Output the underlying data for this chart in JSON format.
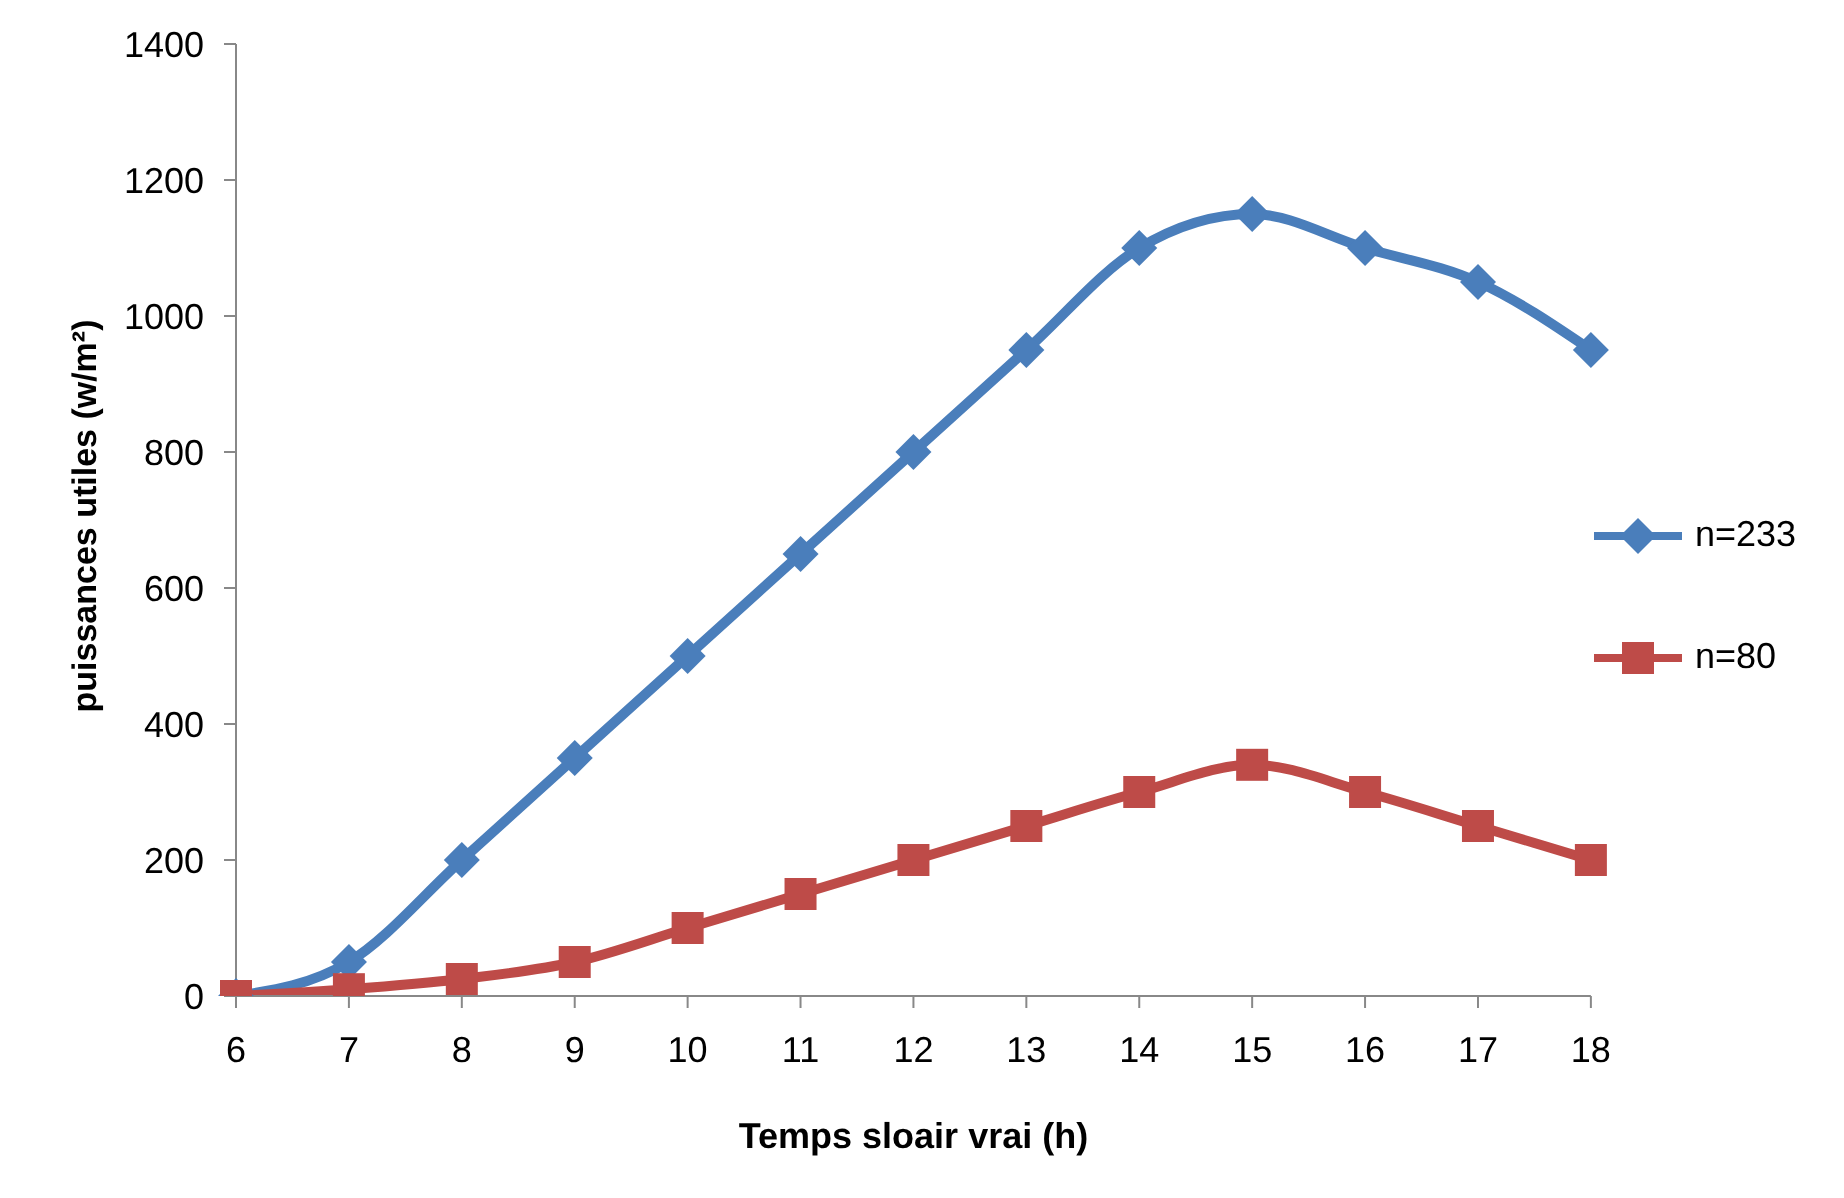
{
  "chart_data": {
    "type": "line",
    "xlabel": "Temps sloair vrai (h)",
    "ylabel": "puissances  utiles (w/m²)",
    "categories": [
      "6",
      "7",
      "8",
      "9",
      "10",
      "11",
      "12",
      "13",
      "14",
      "15",
      "16",
      "17",
      "18"
    ],
    "series": [
      {
        "name": "n=233",
        "color": "#4a7ebb",
        "marker": "diamond",
        "values": [
          0,
          50,
          200,
          350,
          500,
          650,
          800,
          950,
          1100,
          1150,
          1100,
          1050,
          950
        ]
      },
      {
        "name": "n=80",
        "color": "#be4b48",
        "marker": "square",
        "values": [
          0,
          10,
          25,
          50,
          100,
          150,
          200,
          250,
          300,
          340,
          300,
          250,
          200
        ]
      }
    ],
    "ylim": [
      0,
      1400
    ],
    "yticks": [
      0,
      200,
      400,
      600,
      800,
      1000,
      1200,
      1400
    ],
    "grid": false,
    "legend": "right"
  }
}
